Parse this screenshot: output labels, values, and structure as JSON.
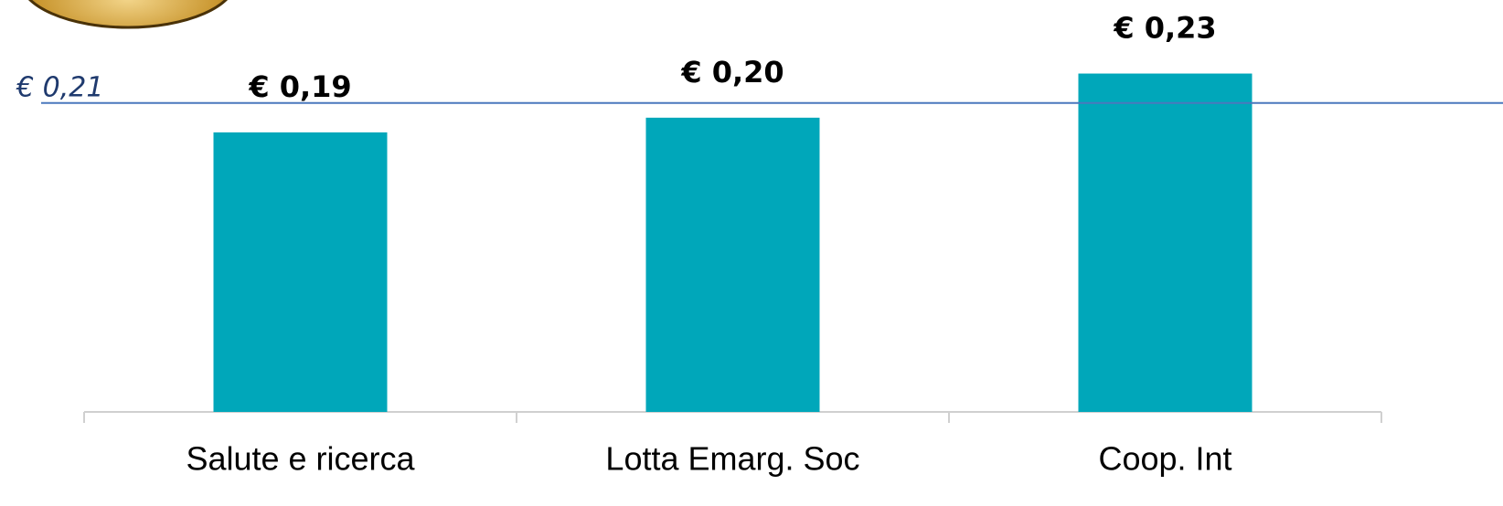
{
  "chart_data": {
    "type": "bar",
    "categories": [
      "Salute e ricerca",
      "Lotta Emarg. Soc",
      "Coop. Int"
    ],
    "values": [
      0.19,
      0.2,
      0.23
    ],
    "value_labels": [
      "€  0,19",
      "€ 0,20",
      "€ 0,23"
    ],
    "color": "#00a7ba",
    "ylim": [
      0,
      0.28
    ],
    "reference_line": {
      "value": 0.21,
      "label": "€ 0,21",
      "color": "#4a78bd"
    }
  }
}
